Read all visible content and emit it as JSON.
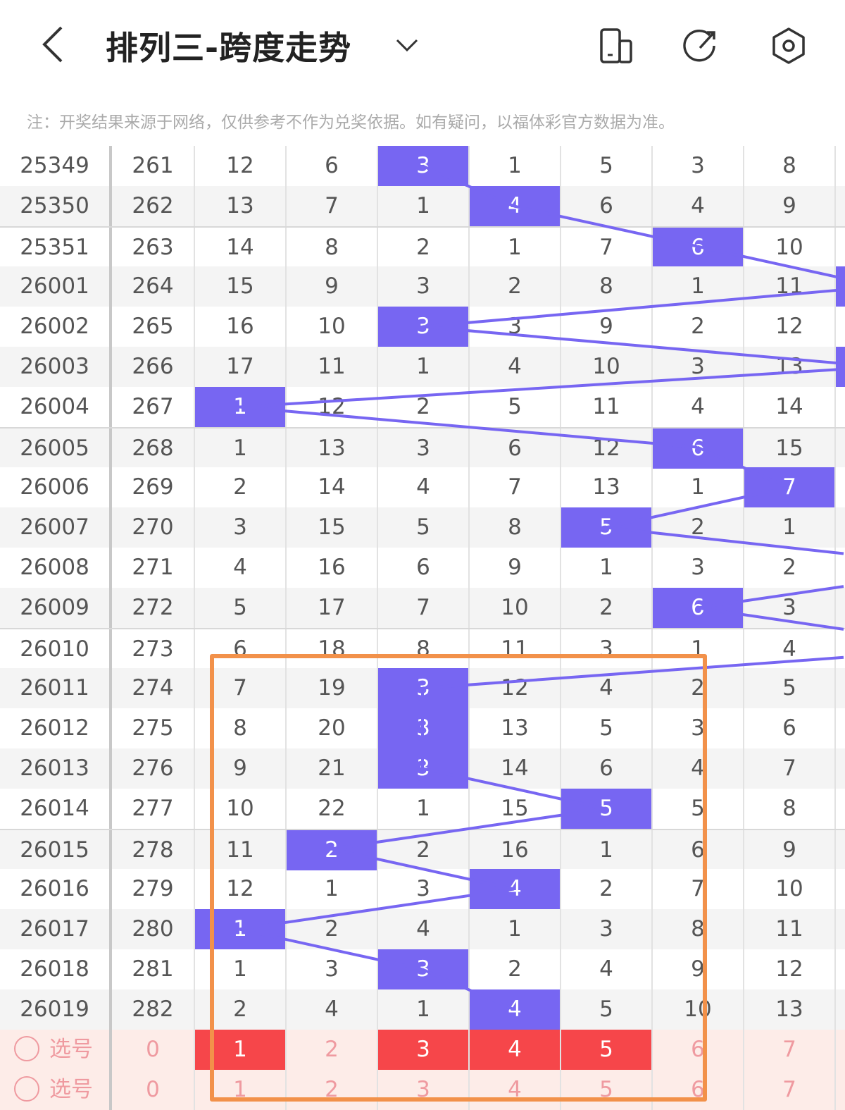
{
  "header": {
    "title": "排列三-跨度走势",
    "icons": [
      "back-icon",
      "dropdown-chevron-icon",
      "layout-switch-icon",
      "refresh-icon",
      "settings-icon"
    ]
  },
  "note": "注：开奖结果来源于网络，仅供参考不作为兑奖依据。如有疑问，以福体彩官方数据为准。",
  "colors": {
    "hit": "#7766f2",
    "line": "#7766f2",
    "selected": "#f6464a",
    "frame": "#f2914a",
    "select_row_bg": "#fdece8"
  },
  "rows": [
    {
      "issue": "25349",
      "n": "261",
      "v": [
        "12",
        "6",
        "3",
        "1",
        "5",
        "3",
        "8"
      ],
      "hit": 2
    },
    {
      "issue": "25350",
      "n": "262",
      "v": [
        "13",
        "7",
        "1",
        "4",
        "6",
        "4",
        "9"
      ],
      "hit": 3
    },
    {
      "issue": "25351",
      "n": "263",
      "v": [
        "14",
        "8",
        "2",
        "1",
        "7",
        "6",
        "10"
      ],
      "hit": 5
    },
    {
      "issue": "26001",
      "n": "264",
      "v": [
        "15",
        "9",
        "3",
        "2",
        "8",
        "1",
        "11"
      ],
      "hit": 7
    },
    {
      "issue": "26002",
      "n": "265",
      "v": [
        "16",
        "10",
        "3",
        "3",
        "9",
        "2",
        "12"
      ],
      "hit": 2
    },
    {
      "issue": "26003",
      "n": "266",
      "v": [
        "17",
        "11",
        "1",
        "4",
        "10",
        "3",
        "13"
      ],
      "hit": 7
    },
    {
      "issue": "26004",
      "n": "267",
      "v": [
        "1",
        "12",
        "2",
        "5",
        "11",
        "4",
        "14"
      ],
      "hit": 0
    },
    {
      "issue": "26005",
      "n": "268",
      "v": [
        "1",
        "13",
        "3",
        "6",
        "12",
        "6",
        "15"
      ],
      "hit": 5
    },
    {
      "issue": "26006",
      "n": "269",
      "v": [
        "2",
        "14",
        "4",
        "7",
        "13",
        "1",
        "7"
      ],
      "hit": 6
    },
    {
      "issue": "26007",
      "n": "270",
      "v": [
        "3",
        "15",
        "5",
        "8",
        "5",
        "2",
        "1"
      ],
      "hit": 4
    },
    {
      "issue": "26008",
      "n": "271",
      "v": [
        "4",
        "16",
        "6",
        "9",
        "1",
        "3",
        "2"
      ],
      "hit": 8
    },
    {
      "issue": "26009",
      "n": "272",
      "v": [
        "5",
        "17",
        "7",
        "10",
        "2",
        "6",
        "3"
      ],
      "hit": 5
    },
    {
      "issue": "26010",
      "n": "273",
      "v": [
        "6",
        "18",
        "8",
        "11",
        "3",
        "1",
        "4"
      ],
      "hit": 8
    },
    {
      "issue": "26011",
      "n": "274",
      "v": [
        "7",
        "19",
        "3",
        "12",
        "4",
        "2",
        "5"
      ],
      "hit": 2
    },
    {
      "issue": "26012",
      "n": "275",
      "v": [
        "8",
        "20",
        "3",
        "13",
        "5",
        "3",
        "6"
      ],
      "hit": 2
    },
    {
      "issue": "26013",
      "n": "276",
      "v": [
        "9",
        "21",
        "3",
        "14",
        "6",
        "4",
        "7"
      ],
      "hit": 2
    },
    {
      "issue": "26014",
      "n": "277",
      "v": [
        "10",
        "22",
        "1",
        "15",
        "5",
        "5",
        "8"
      ],
      "hit": 4
    },
    {
      "issue": "26015",
      "n": "278",
      "v": [
        "11",
        "2",
        "2",
        "16",
        "1",
        "6",
        "9"
      ],
      "hit": 1
    },
    {
      "issue": "26016",
      "n": "279",
      "v": [
        "12",
        "1",
        "3",
        "4",
        "2",
        "7",
        "10"
      ],
      "hit": 3
    },
    {
      "issue": "26017",
      "n": "280",
      "v": [
        "1",
        "2",
        "4",
        "1",
        "3",
        "8",
        "11"
      ],
      "hit": 0
    },
    {
      "issue": "26018",
      "n": "281",
      "v": [
        "1",
        "3",
        "3",
        "2",
        "4",
        "9",
        "12"
      ],
      "hit": 2
    },
    {
      "issue": "26019",
      "n": "282",
      "v": [
        "2",
        "4",
        "1",
        "4",
        "5",
        "10",
        "13"
      ],
      "hit": 3
    }
  ],
  "select_rows": [
    {
      "label": "选号",
      "count": "0",
      "v": [
        "1",
        "2",
        "3",
        "4",
        "5",
        "6",
        "7"
      ],
      "selected": [
        0,
        2,
        3,
        4
      ]
    },
    {
      "label": "选号",
      "count": "0",
      "v": [
        "1",
        "2",
        "3",
        "4",
        "5",
        "6",
        "7"
      ],
      "selected": []
    }
  ]
}
